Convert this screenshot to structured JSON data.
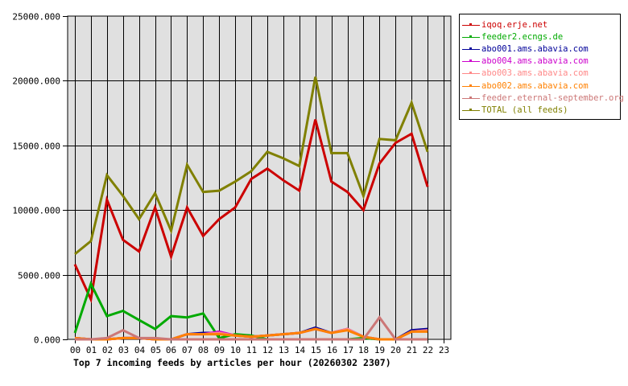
{
  "chart_data": {
    "type": "line",
    "title": "Top 7 incoming feeds by articles per hour (20260302 2307)",
    "xlabel": "",
    "ylabel": "",
    "ylim": [
      0,
      25000
    ],
    "yticks": [
      "0.000",
      "5000.000",
      "10000.000",
      "15000.000",
      "20000.000",
      "25000.000"
    ],
    "categories": [
      "00",
      "01",
      "02",
      "03",
      "04",
      "05",
      "06",
      "07",
      "08",
      "09",
      "10",
      "11",
      "12",
      "13",
      "14",
      "15",
      "16",
      "17",
      "18",
      "19",
      "20",
      "21",
      "22",
      "23"
    ],
    "grid": true,
    "legend_position": "right",
    "series": [
      {
        "name": "iqoq.erje.net",
        "color": "#cc0000",
        "values": [
          5800,
          3100,
          10800,
          7700,
          6800,
          10200,
          6400,
          10200,
          8000,
          9300,
          10200,
          12400,
          13200,
          12300,
          11500,
          17000,
          12200,
          11400,
          10000,
          13600,
          15200,
          15900,
          11800,
          null
        ]
      },
      {
        "name": "feeder2.ecngs.de",
        "color": "#00aa00",
        "values": [
          500,
          4300,
          1800,
          2200,
          1500,
          800,
          1800,
          1700,
          2000,
          100,
          400,
          300,
          0,
          0,
          0,
          0,
          0,
          0,
          100,
          0,
          0,
          0,
          0,
          null
        ]
      },
      {
        "name": "abo001.ams.abavia.com",
        "color": "#000099",
        "values": [
          100,
          0,
          0,
          100,
          100,
          0,
          0,
          400,
          500,
          500,
          300,
          200,
          300,
          400,
          500,
          900,
          500,
          800,
          200,
          0,
          0,
          700,
          800,
          null
        ]
      },
      {
        "name": "abo004.ams.abavia.com",
        "color": "#cc00cc",
        "values": [
          100,
          0,
          0,
          100,
          100,
          0,
          0,
          400,
          400,
          600,
          300,
          200,
          300,
          400,
          500,
          800,
          500,
          800,
          200,
          0,
          0,
          600,
          700,
          null
        ]
      },
      {
        "name": "abo003.ams.abavia.com",
        "color": "#ff8888",
        "values": [
          100,
          0,
          0,
          100,
          100,
          0,
          0,
          400,
          400,
          500,
          300,
          200,
          300,
          400,
          500,
          800,
          500,
          800,
          200,
          0,
          0,
          600,
          700,
          null
        ]
      },
      {
        "name": "abo002.ams.abavia.com",
        "color": "#ff8000",
        "values": [
          100,
          0,
          0,
          100,
          100,
          0,
          0,
          400,
          400,
          400,
          300,
          200,
          300,
          400,
          500,
          800,
          500,
          700,
          200,
          0,
          0,
          600,
          600,
          null
        ]
      },
      {
        "name": "feeder.eternal-september.org",
        "color": "#cc7777",
        "values": [
          0,
          0,
          100,
          700,
          100,
          100,
          0,
          0,
          0,
          0,
          0,
          0,
          0,
          0,
          0,
          0,
          0,
          0,
          0,
          1700,
          0,
          0,
          0,
          null
        ]
      },
      {
        "name": "TOTAL (all feeds)",
        "color": "#808000",
        "values": [
          6600,
          7600,
          12700,
          11100,
          9300,
          11300,
          8400,
          13500,
          11400,
          11500,
          12200,
          13000,
          14500,
          14000,
          13400,
          20300,
          14400,
          14400,
          11100,
          15500,
          15400,
          18300,
          14500,
          null
        ]
      }
    ]
  }
}
